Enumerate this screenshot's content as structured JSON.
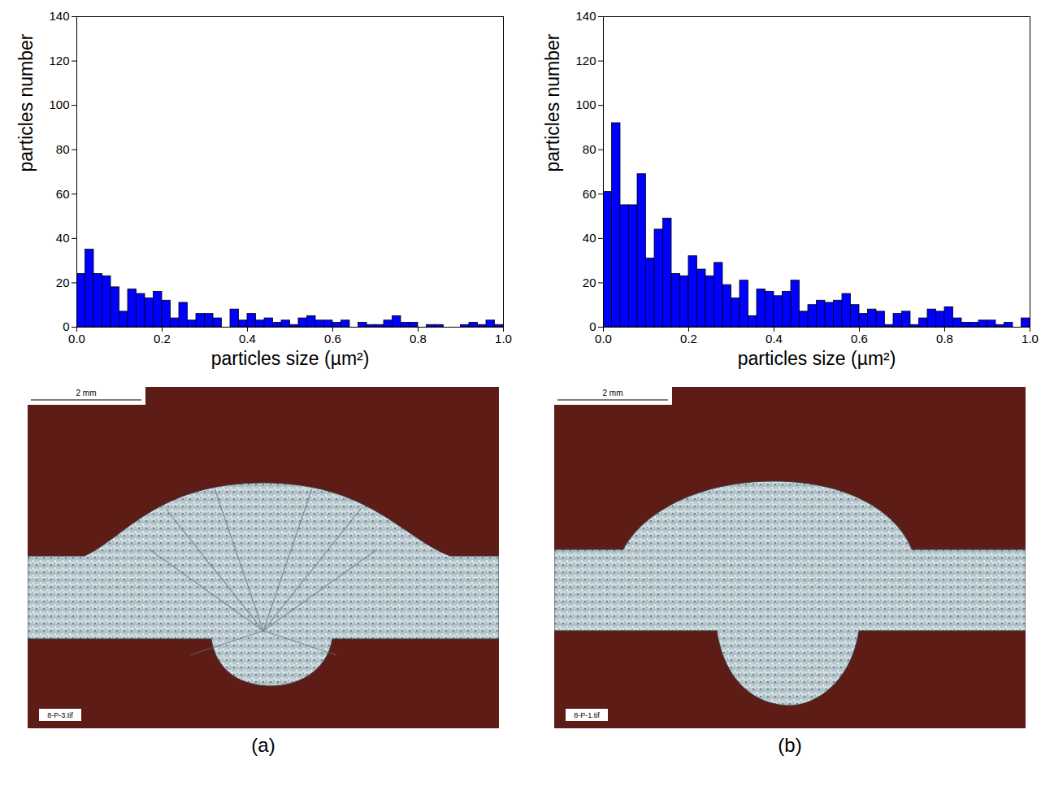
{
  "chart_data": [
    {
      "type": "histogram",
      "xlabel": "particles size (µm²)",
      "ylabel": "particles number",
      "bins": [
        0,
        0.02,
        0.04,
        0.06,
        0.08,
        0.1,
        0.12,
        0.14,
        0.16,
        0.18,
        0.2,
        0.22,
        0.24,
        0.26,
        0.28,
        0.3,
        0.32,
        0.34,
        0.36,
        0.38,
        0.4,
        0.42,
        0.44,
        0.46,
        0.48,
        0.5,
        0.52,
        0.54,
        0.56,
        0.58,
        0.6,
        0.62,
        0.64,
        0.66,
        0.68,
        0.7,
        0.72,
        0.74,
        0.76,
        0.78,
        0.8,
        0.82,
        0.84,
        0.86,
        0.88,
        0.9,
        0.92,
        0.94,
        0.96,
        0.98,
        1
      ],
      "values": [
        24,
        35,
        24,
        23,
        18,
        7,
        17,
        15,
        13,
        16,
        12,
        4,
        11,
        3,
        6,
        6,
        4,
        0,
        8,
        3,
        6,
        3,
        4,
        2,
        3,
        1,
        4,
        5,
        3,
        3,
        2,
        3,
        0,
        2,
        1,
        1,
        3,
        5,
        2,
        2,
        0,
        1,
        1,
        0,
        0,
        1,
        2,
        1,
        3,
        1
      ],
      "color": "#0000ff",
      "xlim": [
        0,
        1
      ],
      "ylim": [
        0,
        140
      ],
      "xticks": [
        {
          "value": 0,
          "label": "0.0"
        },
        0.2,
        0.4,
        0.6,
        0.8,
        {
          "value": 1,
          "label": "1.0"
        }
      ],
      "yticks": [
        0,
        20,
        40,
        60,
        80,
        100,
        120,
        140
      ]
    },
    {
      "type": "histogram",
      "xlabel": "particles size (µm²)",
      "ylabel": "particles number",
      "bins": [
        0,
        0.02,
        0.04,
        0.06,
        0.08,
        0.1,
        0.12,
        0.14,
        0.16,
        0.18,
        0.2,
        0.22,
        0.24,
        0.26,
        0.28,
        0.3,
        0.32,
        0.34,
        0.36,
        0.38,
        0.4,
        0.42,
        0.44,
        0.46,
        0.48,
        0.5,
        0.52,
        0.54,
        0.56,
        0.58,
        0.6,
        0.62,
        0.64,
        0.66,
        0.68,
        0.7,
        0.72,
        0.74,
        0.76,
        0.78,
        0.8,
        0.82,
        0.84,
        0.86,
        0.88,
        0.9,
        0.92,
        0.94,
        0.96,
        0.98,
        1
      ],
      "values": [
        61,
        92,
        55,
        55,
        69,
        31,
        44,
        49,
        24,
        23,
        32,
        26,
        23,
        29,
        19,
        13,
        21,
        5,
        17,
        16,
        14,
        16,
        21,
        7,
        10,
        12,
        11,
        12,
        15,
        10,
        6,
        8,
        7,
        1,
        6,
        7,
        1,
        4,
        8,
        7,
        9,
        4,
        2,
        2,
        3,
        3,
        1,
        2,
        0,
        4
      ],
      "color": "#0000ff",
      "xlim": [
        0,
        1
      ],
      "ylim": [
        0,
        140
      ],
      "xticks": [
        {
          "value": 0,
          "label": "0.0"
        },
        0.2,
        0.4,
        0.6,
        0.8,
        {
          "value": 1,
          "label": "1.0"
        }
      ],
      "yticks": [
        0,
        20,
        40,
        60,
        80,
        100,
        120,
        140
      ]
    }
  ],
  "micrographs": [
    {
      "scale_bar": "2 mm",
      "file": "8-P-3.tif",
      "caption": "(a)"
    },
    {
      "scale_bar": "2 mm",
      "file": "8-P-1.tif",
      "caption": "(b)"
    }
  ]
}
